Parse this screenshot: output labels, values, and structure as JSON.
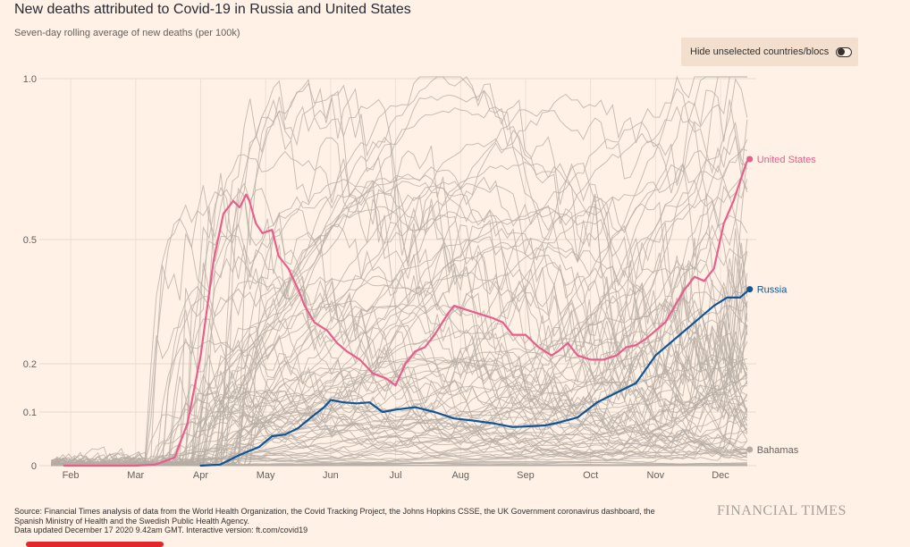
{
  "header": {
    "title": "New deaths attributed to Covid-19 in Russia and United States",
    "subtitle": "Seven-day rolling average of new deaths (per 100k)"
  },
  "toggle": {
    "label": "Hide unselected countries/blocs"
  },
  "footer": {
    "source_line1": "Source: Financial Times analysis of data from the World Health Organization, the Covid Tracking Project, the Johns Hopkins CSSE, the UK Government coronavirus dashboard, the",
    "source_line2": "Spanish Ministry of Health and the Swedish Public Health Agency.",
    "source_line3": "Data updated December 17 2020 9.42am GMT. Interactive version: ft.com/covid19",
    "logo": "FINANCIAL TIMES"
  },
  "colors": {
    "background": "#fff1e5",
    "united_states": "#e95d8c",
    "russia": "#0f5499",
    "other_countries": "#b6aca4",
    "bahamas": "#b6aca4"
  },
  "chart_data": {
    "type": "line",
    "title": "New deaths attributed to Covid-19 in Russia and United States",
    "subtitle": "Seven-day rolling average of new deaths (per 100k)",
    "y_scale": "symlog",
    "ylim": [
      0,
      1.0
    ],
    "y_ticks": [
      {
        "value": 0,
        "label": "0"
      },
      {
        "value": 0.1,
        "label": "0.1"
      },
      {
        "value": 0.2,
        "label": "0.2"
      },
      {
        "value": 0.5,
        "label": "0.5"
      },
      {
        "value": 1.0,
        "label": "1.0"
      }
    ],
    "x_unit": "month index (Jan = 0, Feb = 1, ... Dec = 11)",
    "xlim": [
      0.6,
      11.55
    ],
    "x_ticks": [
      {
        "value": 1,
        "label": "Feb"
      },
      {
        "value": 2,
        "label": "Mar"
      },
      {
        "value": 3,
        "label": "Apr"
      },
      {
        "value": 4,
        "label": "May"
      },
      {
        "value": 5,
        "label": "Jun"
      },
      {
        "value": 6,
        "label": "Jul"
      },
      {
        "value": 7,
        "label": "Aug"
      },
      {
        "value": 8,
        "label": "Sep"
      },
      {
        "value": 9,
        "label": "Oct"
      },
      {
        "value": 10,
        "label": "Nov"
      },
      {
        "value": 11,
        "label": "Dec"
      }
    ],
    "grid": true,
    "series": [
      {
        "name": "United States",
        "label": "United States",
        "x": [
          0.9,
          1.5,
          2.0,
          2.3,
          2.6,
          2.8,
          3.0,
          3.2,
          3.35,
          3.5,
          3.6,
          3.7,
          3.75,
          3.85,
          3.95,
          4.1,
          4.2,
          4.35,
          4.5,
          4.6,
          4.75,
          4.95,
          5.1,
          5.25,
          5.45,
          5.65,
          5.85,
          6.0,
          6.15,
          6.3,
          6.45,
          6.6,
          6.8,
          6.9,
          7.1,
          7.3,
          7.5,
          7.65,
          7.8,
          8.0,
          8.2,
          8.4,
          8.5,
          8.65,
          8.8,
          9.0,
          9.2,
          9.4,
          9.55,
          9.7,
          9.85,
          10.0,
          10.15,
          10.3,
          10.45,
          10.6,
          10.75,
          10.9,
          11.05,
          11.2,
          11.4,
          11.45
        ],
        "values": [
          0,
          0,
          0,
          0.002,
          0.015,
          0.08,
          0.22,
          0.45,
          0.58,
          0.62,
          0.6,
          0.64,
          0.62,
          0.55,
          0.52,
          0.53,
          0.46,
          0.43,
          0.38,
          0.34,
          0.3,
          0.28,
          0.25,
          0.23,
          0.21,
          0.18,
          0.17,
          0.155,
          0.2,
          0.23,
          0.24,
          0.27,
          0.32,
          0.34,
          0.33,
          0.32,
          0.31,
          0.3,
          0.27,
          0.27,
          0.24,
          0.22,
          0.23,
          0.25,
          0.22,
          0.21,
          0.21,
          0.22,
          0.24,
          0.245,
          0.26,
          0.28,
          0.3,
          0.34,
          0.38,
          0.41,
          0.4,
          0.43,
          0.55,
          0.62,
          0.74,
          0.75
        ]
      },
      {
        "name": "Russia",
        "label": "Russia",
        "x": [
          3.0,
          3.3,
          3.6,
          3.9,
          4.1,
          4.3,
          4.5,
          4.7,
          4.9,
          5.0,
          5.2,
          5.4,
          5.6,
          5.8,
          6.0,
          6.3,
          6.6,
          6.9,
          7.2,
          7.5,
          7.8,
          8.0,
          8.3,
          8.5,
          8.8,
          9.1,
          9.4,
          9.7,
          10.0,
          10.3,
          10.6,
          10.9,
          11.1,
          11.3,
          11.45
        ],
        "values": [
          0,
          0.002,
          0.02,
          0.035,
          0.055,
          0.058,
          0.07,
          0.09,
          0.11,
          0.125,
          0.12,
          0.118,
          0.12,
          0.1,
          0.105,
          0.11,
          0.1,
          0.088,
          0.084,
          0.079,
          0.072,
          0.073,
          0.075,
          0.08,
          0.09,
          0.12,
          0.14,
          0.16,
          0.22,
          0.26,
          0.3,
          0.34,
          0.36,
          0.36,
          0.38
        ]
      },
      {
        "name": "Bahamas",
        "label": "Bahamas",
        "x": [
          11.2,
          11.3,
          11.4,
          11.45
        ],
        "values": [
          0.03,
          0.03,
          0.03,
          0.03
        ]
      }
    ],
    "background_series_note": "Many other countries/blocs drawn as thin grey lines",
    "annotations": [
      "United States",
      "Russia",
      "Bahamas"
    ]
  }
}
